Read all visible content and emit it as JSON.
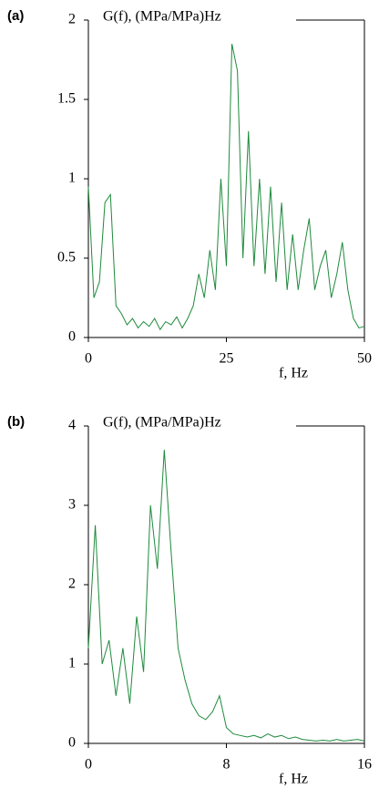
{
  "chart_data": [
    {
      "type": "line",
      "panel_label": "(a)",
      "y_label": "G(f),  (MPa/MPa)Hz",
      "x_label": "f, Hz",
      "color": "#1e8a3c",
      "x": [
        0,
        1,
        2,
        3,
        4,
        5,
        6,
        7,
        8,
        9,
        10,
        11,
        12,
        13,
        14,
        15,
        16,
        17,
        18,
        19,
        20,
        21,
        22,
        23,
        24,
        25,
        26,
        27,
        28,
        29,
        30,
        31,
        32,
        33,
        34,
        35,
        36,
        37,
        38,
        39,
        40,
        41,
        42,
        43,
        44,
        45,
        46,
        47,
        48,
        49,
        50
      ],
      "values": [
        0.95,
        0.25,
        0.35,
        0.85,
        0.9,
        0.2,
        0.15,
        0.08,
        0.12,
        0.06,
        0.1,
        0.07,
        0.12,
        0.05,
        0.1,
        0.08,
        0.13,
        0.06,
        0.12,
        0.2,
        0.4,
        0.25,
        0.55,
        0.3,
        1.0,
        0.45,
        1.85,
        1.68,
        0.5,
        1.3,
        0.45,
        1.0,
        0.4,
        0.95,
        0.35,
        0.85,
        0.3,
        0.65,
        0.3,
        0.55,
        0.75,
        0.3,
        0.45,
        0.55,
        0.25,
        0.4,
        0.6,
        0.3,
        0.12,
        0.06,
        0.07
      ],
      "xlim": [
        0,
        50
      ],
      "ylim": [
        0,
        2
      ],
      "xticks": [
        0,
        25,
        50
      ],
      "yticks": [
        0,
        0.5,
        1,
        1.5,
        2
      ]
    },
    {
      "type": "line",
      "panel_label": "(b)",
      "y_label": "G(f),  (MPa/MPa)Hz",
      "x_label": "f, Hz",
      "color": "#1e8a3c",
      "x": [
        0,
        0.4,
        0.8,
        1.2,
        1.6,
        2.0,
        2.4,
        2.8,
        3.2,
        3.6,
        4.0,
        4.4,
        4.8,
        5.2,
        5.6,
        6.0,
        6.4,
        6.8,
        7.2,
        7.6,
        8.0,
        8.4,
        8.8,
        9.2,
        9.6,
        10.0,
        10.4,
        10.8,
        11.2,
        11.6,
        12.0,
        12.4,
        12.8,
        13.2,
        13.6,
        14.0,
        14.4,
        14.8,
        15.2,
        15.6,
        16.0
      ],
      "values": [
        1.2,
        2.75,
        1.0,
        1.3,
        0.6,
        1.2,
        0.5,
        1.6,
        0.9,
        3.0,
        2.2,
        3.7,
        2.4,
        1.2,
        0.8,
        0.5,
        0.35,
        0.3,
        0.4,
        0.6,
        0.2,
        0.12,
        0.1,
        0.08,
        0.1,
        0.07,
        0.12,
        0.08,
        0.1,
        0.06,
        0.08,
        0.05,
        0.04,
        0.03,
        0.04,
        0.03,
        0.05,
        0.03,
        0.04,
        0.05,
        0.03
      ],
      "xlim": [
        0,
        16
      ],
      "ylim": [
        0,
        4
      ],
      "xticks": [
        0,
        8,
        16
      ],
      "yticks": [
        0,
        1,
        2,
        3,
        4
      ]
    }
  ]
}
